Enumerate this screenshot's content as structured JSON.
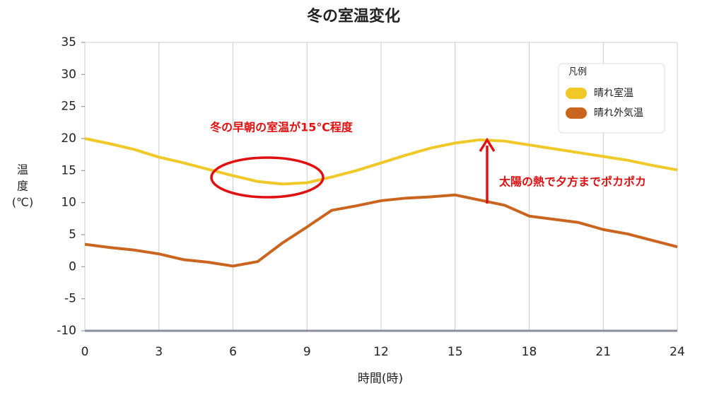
{
  "chart_data": {
    "type": "line",
    "title": "冬の室温変化",
    "x_label": "時間(時)",
    "y_label": [
      "温",
      "度",
      "(℃)"
    ],
    "x": [
      0,
      1,
      2,
      3,
      4,
      5,
      6,
      7,
      8,
      9,
      10,
      11,
      12,
      13,
      14,
      15,
      16,
      17,
      18,
      19,
      20,
      21,
      22,
      23,
      24
    ],
    "series": [
      {
        "name": "晴れ室温",
        "color": "#f0c929",
        "values": [
          20,
          19.2,
          18.3,
          17.1,
          16.2,
          15.2,
          14.2,
          13.3,
          12.9,
          13.1,
          14,
          15,
          16.2,
          17.4,
          18.5,
          19.3,
          19.8,
          19.6,
          19,
          18.4,
          17.8,
          17.2,
          16.6,
          15.8,
          15.1
        ]
      },
      {
        "name": "晴れ外気温",
        "color": "#c9651f",
        "values": [
          3.5,
          3,
          2.6,
          2,
          1.1,
          0.7,
          0.1,
          0.8,
          3.7,
          6.2,
          8.8,
          9.5,
          10.3,
          10.7,
          10.9,
          11.2,
          10.4,
          9.6,
          7.9,
          7.4,
          6.9,
          5.8,
          5.1,
          4.1,
          3.1
        ]
      }
    ],
    "xlim": [
      0,
      24
    ],
    "xticks": [
      0,
      3,
      6,
      9,
      12,
      15,
      18,
      21,
      24
    ],
    "ylim": [
      -10,
      35
    ],
    "yticks": [
      -10,
      -5,
      0,
      5,
      10,
      15,
      20,
      25,
      30,
      35
    ],
    "grid": "x",
    "legend": {
      "title": "凡例",
      "position": "upper right"
    },
    "annotations": [
      "冬の早朝の室温が15℃程度",
      "太陽の熱で夕方までポカポカ"
    ]
  }
}
